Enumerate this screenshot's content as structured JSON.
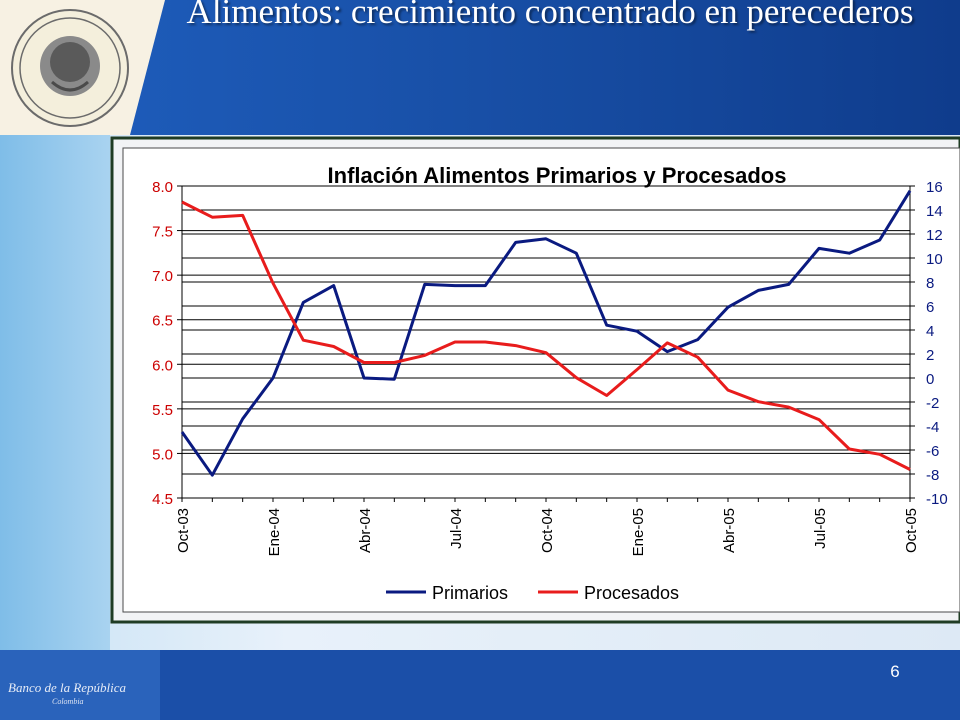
{
  "slide": {
    "title": "Alimentos: crecimiento concentrado en perecederos",
    "page_number": "6",
    "seal_text": "BANCO DE LA REPUBLICA · COLOMBIA",
    "footer_logo_text": "Banco de la República",
    "footer_logo_subtext": "Colombia"
  },
  "colors": {
    "slide_blue": "#1b4fa8",
    "light_blue": "#93c8ea",
    "seal_gold": "#d9c36f",
    "primarios": "#0a1a80",
    "procesados": "#e81c1c",
    "left_axis_text": "#cc0000",
    "right_axis_text": "#0a1a80"
  },
  "chart_data": {
    "type": "line",
    "title": "Inflación Alimentos Primarios y Procesados",
    "x": [
      "Oct-03",
      "Nov-03",
      "Dic-03",
      "Ene-04",
      "Feb-04",
      "Mar-04",
      "Abr-04",
      "May-04",
      "Jun-04",
      "Jul-04",
      "Ago-04",
      "Sep-04",
      "Oct-04",
      "Nov-04",
      "Dic-04",
      "Ene-05",
      "Feb-05",
      "Mar-05",
      "Abr-05",
      "May-05",
      "Jun-05",
      "Jul-05",
      "Ago-05",
      "Sep-05",
      "Oct-05"
    ],
    "x_tick_labels": [
      "Oct-03",
      "Ene-04",
      "Abr-04",
      "Jul-04",
      "Oct-04",
      "Ene-05",
      "Abr-05",
      "Jul-05",
      "Oct-05"
    ],
    "x_tick_indices": [
      0,
      3,
      6,
      9,
      12,
      15,
      18,
      21,
      24
    ],
    "left_axis": {
      "min": 4.5,
      "max": 8.0,
      "ticks": [
        "4.5",
        "5.0",
        "5.5",
        "6.0",
        "6.5",
        "7.0",
        "7.5",
        "8.0"
      ]
    },
    "right_axis": {
      "min": -10,
      "max": 16,
      "ticks": [
        "-10",
        "-8",
        "-6",
        "-4",
        "-2",
        "0",
        "2",
        "4",
        "6",
        "8",
        "10",
        "12",
        "14",
        "16"
      ]
    },
    "gridlines": true,
    "legend_position": "bottom",
    "series": [
      {
        "name": "Primarios",
        "axis": "right",
        "values": [
          -4.5,
          -8.1,
          -3.4,
          0.0,
          6.3,
          7.7,
          0.0,
          -0.1,
          7.8,
          7.7,
          7.7,
          11.3,
          11.6,
          10.4,
          4.4,
          3.9,
          2.2,
          3.2,
          5.9,
          7.3,
          7.8,
          10.8,
          10.4,
          11.5,
          15.6
        ]
      },
      {
        "name": "Procesados",
        "axis": "left",
        "values": [
          7.82,
          7.65,
          7.67,
          6.91,
          6.27,
          6.2,
          6.02,
          6.02,
          6.1,
          6.25,
          6.25,
          6.21,
          6.13,
          5.85,
          5.65,
          5.94,
          6.24,
          6.08,
          5.71,
          5.58,
          5.52,
          5.38,
          5.05,
          4.99,
          4.82
        ]
      }
    ]
  }
}
